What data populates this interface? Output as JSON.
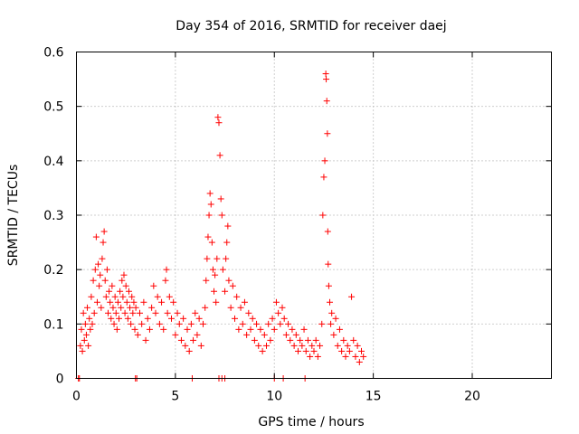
{
  "chart_data": {
    "type": "scatter",
    "title": "Day 354 of 2016, SRMTID for receiver daej",
    "xlabel": "GPS time / hours",
    "ylabel": "SRMTID / TECUs",
    "xlim": [
      0,
      24
    ],
    "ylim": [
      0,
      0.6
    ],
    "xticks": [
      0,
      5,
      10,
      15,
      20
    ],
    "yticks": [
      0,
      0.1,
      0.2,
      0.3,
      0.4,
      0.5,
      0.6
    ],
    "xtick_labels": [
      "0",
      "5",
      "10",
      "15",
      "20"
    ],
    "ytick_labels": [
      "0",
      "0.1",
      "0.2",
      "0.3",
      "0.4",
      "0.5",
      "0.6"
    ],
    "grid": true,
    "marker": "+",
    "color": "#ff0000",
    "series": [
      {
        "name": "SRMTID",
        "points": [
          [
            0.1,
            0.0
          ],
          [
            0.15,
            0.0
          ],
          [
            2.98,
            0.0
          ],
          [
            3.05,
            0.0
          ],
          [
            5.85,
            0.0
          ],
          [
            7.2,
            0.0
          ],
          [
            7.35,
            0.0
          ],
          [
            7.5,
            0.0
          ],
          [
            10.0,
            0.0
          ],
          [
            10.45,
            0.0
          ],
          [
            11.55,
            0.0
          ],
          [
            0.2,
            0.06
          ],
          [
            0.25,
            0.09
          ],
          [
            0.3,
            0.05
          ],
          [
            0.35,
            0.12
          ],
          [
            0.4,
            0.07
          ],
          [
            0.45,
            0.1
          ],
          [
            0.5,
            0.08
          ],
          [
            0.55,
            0.13
          ],
          [
            0.6,
            0.06
          ],
          [
            0.65,
            0.11
          ],
          [
            0.7,
            0.09
          ],
          [
            0.75,
            0.15
          ],
          [
            0.8,
            0.1
          ],
          [
            0.85,
            0.18
          ],
          [
            0.9,
            0.12
          ],
          [
            0.95,
            0.2
          ],
          [
            1.0,
            0.26
          ],
          [
            1.05,
            0.14
          ],
          [
            1.1,
            0.21
          ],
          [
            1.15,
            0.17
          ],
          [
            1.2,
            0.19
          ],
          [
            1.25,
            0.13
          ],
          [
            1.3,
            0.22
          ],
          [
            1.35,
            0.25
          ],
          [
            1.4,
            0.27
          ],
          [
            1.45,
            0.18
          ],
          [
            1.5,
            0.15
          ],
          [
            1.55,
            0.2
          ],
          [
            1.6,
            0.12
          ],
          [
            1.65,
            0.16
          ],
          [
            1.7,
            0.14
          ],
          [
            1.75,
            0.11
          ],
          [
            1.8,
            0.17
          ],
          [
            1.85,
            0.13
          ],
          [
            1.9,
            0.1
          ],
          [
            1.95,
            0.15
          ],
          [
            2.0,
            0.12
          ],
          [
            2.05,
            0.09
          ],
          [
            2.1,
            0.14
          ],
          [
            2.15,
            0.11
          ],
          [
            2.2,
            0.16
          ],
          [
            2.25,
            0.13
          ],
          [
            2.3,
            0.18
          ],
          [
            2.35,
            0.15
          ],
          [
            2.4,
            0.19
          ],
          [
            2.45,
            0.12
          ],
          [
            2.5,
            0.17
          ],
          [
            2.55,
            0.14
          ],
          [
            2.6,
            0.11
          ],
          [
            2.65,
            0.16
          ],
          [
            2.7,
            0.13
          ],
          [
            2.75,
            0.1
          ],
          [
            2.8,
            0.15
          ],
          [
            2.85,
            0.12
          ],
          [
            2.9,
            0.14
          ],
          [
            2.95,
            0.09
          ],
          [
            3.0,
            0.13
          ],
          [
            3.1,
            0.08
          ],
          [
            3.2,
            0.12
          ],
          [
            3.3,
            0.1
          ],
          [
            3.4,
            0.14
          ],
          [
            3.5,
            0.07
          ],
          [
            3.6,
            0.11
          ],
          [
            3.7,
            0.09
          ],
          [
            3.8,
            0.13
          ],
          [
            3.9,
            0.17
          ],
          [
            4.0,
            0.12
          ],
          [
            4.1,
            0.15
          ],
          [
            4.2,
            0.1
          ],
          [
            4.3,
            0.14
          ],
          [
            4.4,
            0.09
          ],
          [
            4.5,
            0.18
          ],
          [
            4.55,
            0.2
          ],
          [
            4.6,
            0.12
          ],
          [
            4.7,
            0.15
          ],
          [
            4.8,
            0.11
          ],
          [
            4.9,
            0.14
          ],
          [
            5.0,
            0.08
          ],
          [
            5.1,
            0.12
          ],
          [
            5.2,
            0.1
          ],
          [
            5.3,
            0.07
          ],
          [
            5.4,
            0.11
          ],
          [
            5.5,
            0.06
          ],
          [
            5.6,
            0.09
          ],
          [
            5.7,
            0.05
          ],
          [
            5.8,
            0.1
          ],
          [
            5.9,
            0.07
          ],
          [
            6.0,
            0.12
          ],
          [
            6.1,
            0.08
          ],
          [
            6.2,
            0.11
          ],
          [
            6.3,
            0.06
          ],
          [
            6.4,
            0.1
          ],
          [
            6.5,
            0.13
          ],
          [
            6.55,
            0.18
          ],
          [
            6.6,
            0.22
          ],
          [
            6.65,
            0.26
          ],
          [
            6.7,
            0.3
          ],
          [
            6.75,
            0.34
          ],
          [
            6.8,
            0.32
          ],
          [
            6.85,
            0.25
          ],
          [
            6.9,
            0.2
          ],
          [
            6.95,
            0.16
          ],
          [
            7.0,
            0.19
          ],
          [
            7.05,
            0.14
          ],
          [
            7.1,
            0.22
          ],
          [
            7.15,
            0.48
          ],
          [
            7.2,
            0.47
          ],
          [
            7.25,
            0.41
          ],
          [
            7.3,
            0.33
          ],
          [
            7.35,
            0.3
          ],
          [
            7.4,
            0.2
          ],
          [
            7.5,
            0.16
          ],
          [
            7.55,
            0.22
          ],
          [
            7.6,
            0.25
          ],
          [
            7.65,
            0.28
          ],
          [
            7.7,
            0.18
          ],
          [
            7.8,
            0.13
          ],
          [
            7.9,
            0.17
          ],
          [
            8.0,
            0.11
          ],
          [
            8.1,
            0.15
          ],
          [
            8.2,
            0.09
          ],
          [
            8.3,
            0.13
          ],
          [
            8.4,
            0.1
          ],
          [
            8.5,
            0.14
          ],
          [
            8.6,
            0.08
          ],
          [
            8.7,
            0.12
          ],
          [
            8.8,
            0.09
          ],
          [
            8.9,
            0.11
          ],
          [
            9.0,
            0.07
          ],
          [
            9.1,
            0.1
          ],
          [
            9.2,
            0.06
          ],
          [
            9.3,
            0.09
          ],
          [
            9.4,
            0.05
          ],
          [
            9.5,
            0.08
          ],
          [
            9.6,
            0.06
          ],
          [
            9.7,
            0.1
          ],
          [
            9.8,
            0.07
          ],
          [
            9.9,
            0.11
          ],
          [
            10.0,
            0.09
          ],
          [
            10.1,
            0.14
          ],
          [
            10.2,
            0.12
          ],
          [
            10.3,
            0.1
          ],
          [
            10.4,
            0.13
          ],
          [
            10.5,
            0.11
          ],
          [
            10.6,
            0.08
          ],
          [
            10.7,
            0.1
          ],
          [
            10.8,
            0.07
          ],
          [
            10.9,
            0.09
          ],
          [
            11.0,
            0.06
          ],
          [
            11.1,
            0.08
          ],
          [
            11.2,
            0.05
          ],
          [
            11.3,
            0.07
          ],
          [
            11.4,
            0.06
          ],
          [
            11.5,
            0.09
          ],
          [
            11.6,
            0.05
          ],
          [
            11.7,
            0.07
          ],
          [
            11.8,
            0.04
          ],
          [
            11.9,
            0.06
          ],
          [
            12.0,
            0.05
          ],
          [
            12.1,
            0.07
          ],
          [
            12.2,
            0.04
          ],
          [
            12.3,
            0.06
          ],
          [
            12.4,
            0.1
          ],
          [
            12.45,
            0.3
          ],
          [
            12.5,
            0.37
          ],
          [
            12.55,
            0.4
          ],
          [
            12.6,
            0.56
          ],
          [
            12.62,
            0.55
          ],
          [
            12.65,
            0.51
          ],
          [
            12.68,
            0.45
          ],
          [
            12.7,
            0.27
          ],
          [
            12.72,
            0.21
          ],
          [
            12.75,
            0.17
          ],
          [
            12.8,
            0.14
          ],
          [
            12.85,
            0.1
          ],
          [
            12.9,
            0.12
          ],
          [
            13.0,
            0.08
          ],
          [
            13.1,
            0.11
          ],
          [
            13.2,
            0.06
          ],
          [
            13.3,
            0.09
          ],
          [
            13.4,
            0.05
          ],
          [
            13.5,
            0.07
          ],
          [
            13.6,
            0.04
          ],
          [
            13.7,
            0.06
          ],
          [
            13.8,
            0.05
          ],
          [
            13.9,
            0.15
          ],
          [
            14.0,
            0.07
          ],
          [
            14.1,
            0.04
          ],
          [
            14.2,
            0.06
          ],
          [
            14.3,
            0.03
          ],
          [
            14.4,
            0.05
          ],
          [
            14.5,
            0.04
          ]
        ]
      }
    ]
  }
}
